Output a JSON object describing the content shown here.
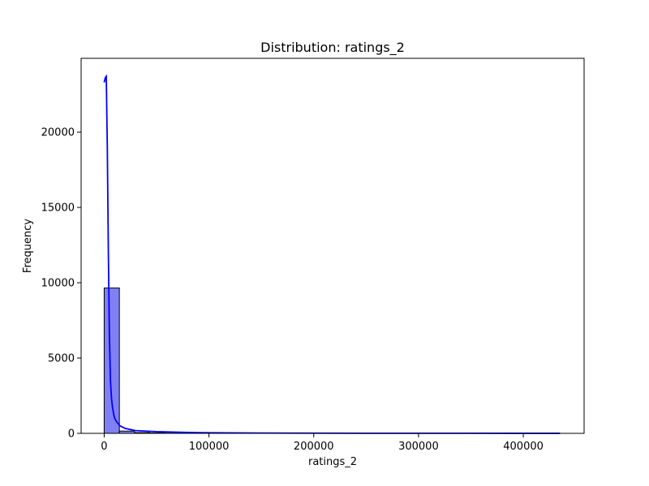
{
  "chart_data": {
    "type": "bar",
    "title": "Distribution: ratings_2",
    "xlabel": "ratings_2",
    "ylabel": "Frequency",
    "xlim": [
      -22000,
      458000
    ],
    "ylim": [
      0,
      24900
    ],
    "xticks": [
      0,
      100000,
      200000,
      300000,
      400000
    ],
    "xtick_labels": [
      "0",
      "100000",
      "200000",
      "300000",
      "400000"
    ],
    "yticks": [
      0,
      5000,
      10000,
      15000,
      20000
    ],
    "ytick_labels": [
      "0",
      "5000",
      "10000",
      "15000",
      "20000"
    ],
    "grid": false,
    "legend": "none",
    "colors": {
      "bar_fill": "#8080f5",
      "bar_edge": "#000000",
      "kde": "#0000ff"
    },
    "histogram": {
      "bin_edges": [
        0,
        14500,
        29000,
        43500,
        58000,
        72500,
        87000,
        101500,
        116000,
        130500,
        145000,
        159500,
        174000,
        188500,
        203000,
        217500,
        232000,
        246500,
        261000,
        275500,
        290000,
        304500,
        319000,
        333500,
        348000,
        362500,
        377000,
        391500,
        406000,
        420500,
        435000
      ],
      "counts": [
        9650,
        150,
        50,
        25,
        15,
        10,
        8,
        5,
        4,
        3,
        3,
        2,
        2,
        2,
        1,
        1,
        1,
        1,
        1,
        1,
        1,
        1,
        1,
        1,
        1,
        1,
        1,
        1,
        1,
        1
      ]
    },
    "kde": {
      "x": [
        0,
        1000,
        2000,
        3000,
        4000,
        5000,
        6000,
        7000,
        8000,
        9000,
        10000,
        12000,
        15000,
        20000,
        30000,
        50000,
        80000,
        100000,
        150000,
        200000,
        250000,
        300000,
        350000,
        400000,
        435000
      ],
      "y": [
        23300,
        23600,
        23700,
        19000,
        12000,
        6500,
        3500,
        2300,
        1700,
        1300,
        1000,
        750,
        500,
        330,
        180,
        110,
        60,
        40,
        20,
        12,
        8,
        6,
        5,
        4,
        3
      ]
    }
  }
}
